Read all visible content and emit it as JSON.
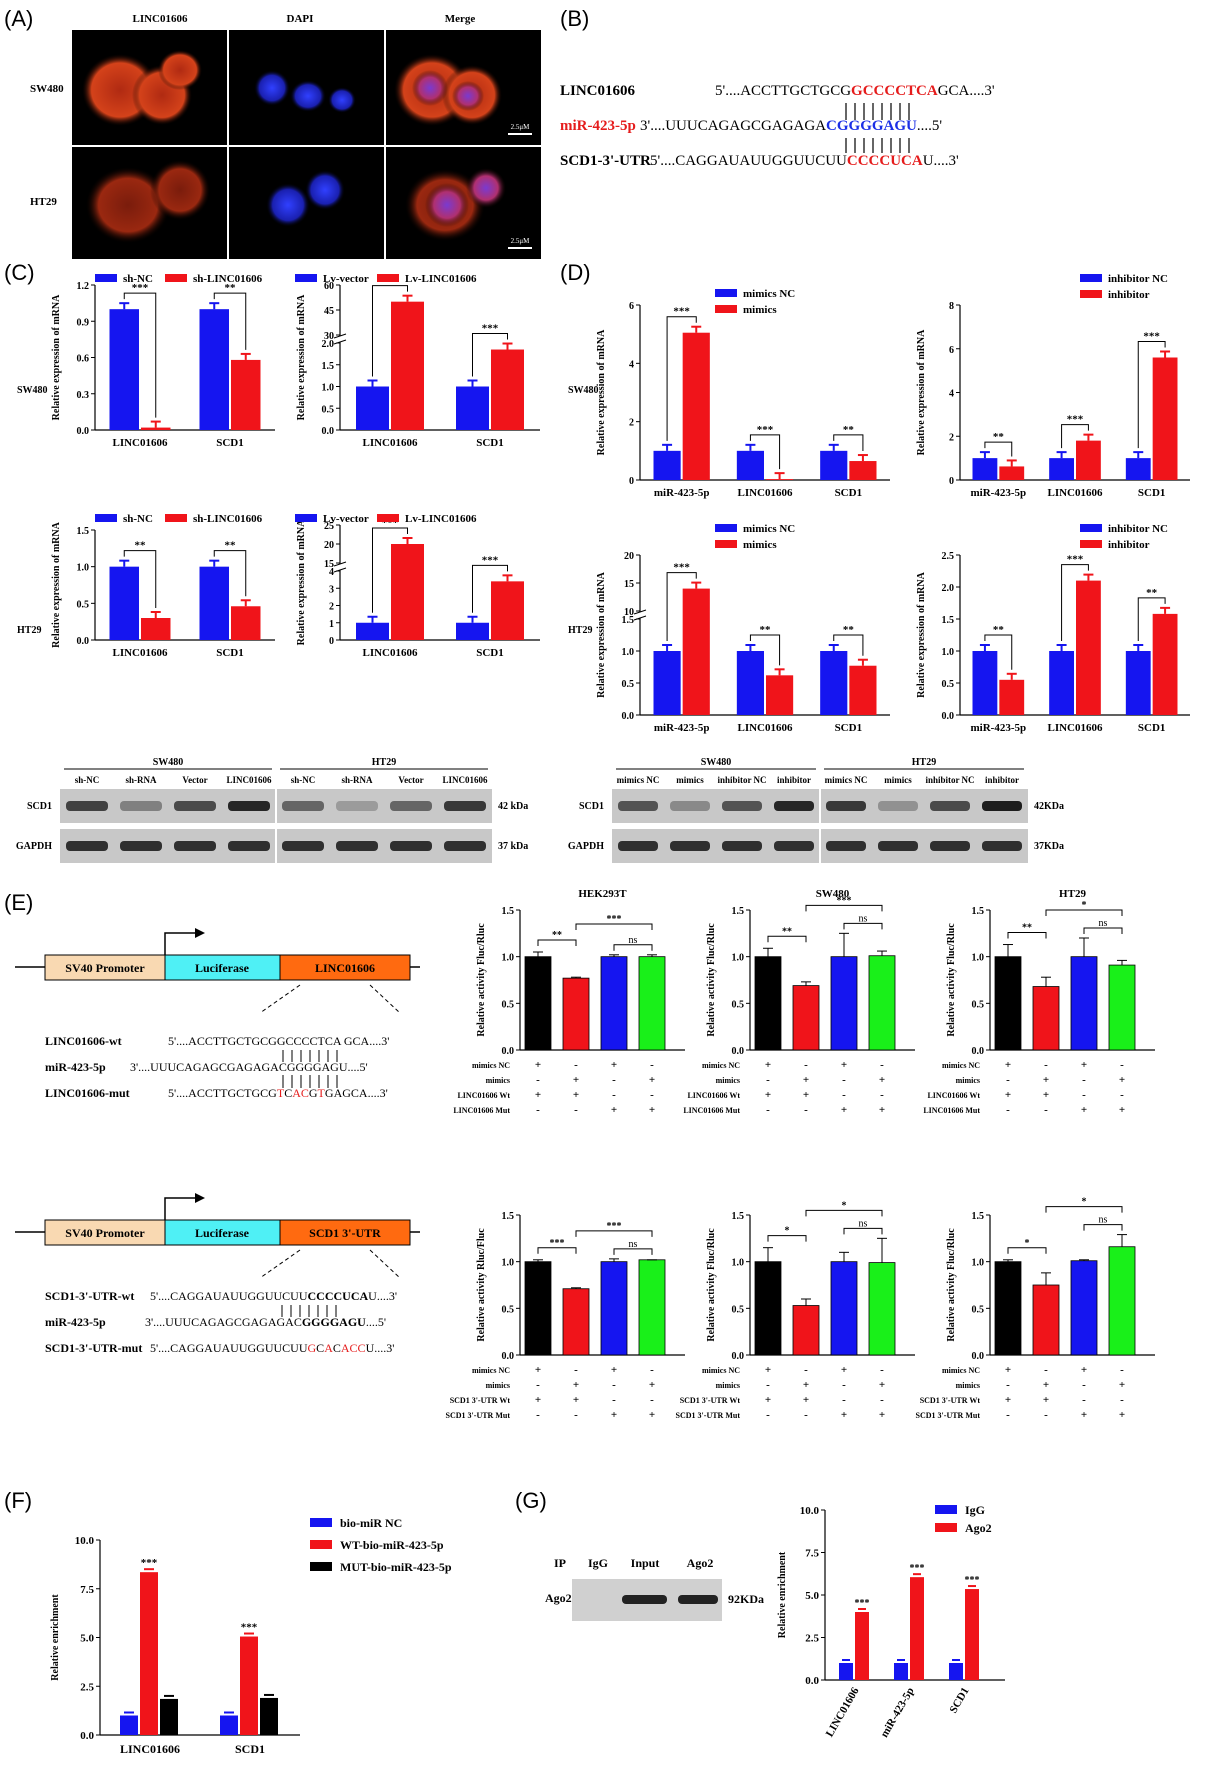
{
  "panels": {
    "a": "(A)",
    "b": "(B)",
    "c": "(C)",
    "d": "(D)",
    "e": "(E)",
    "f": "(F)",
    "g": "(G)"
  },
  "panel_a": {
    "cols": [
      "LINC01606",
      "DAPI",
      "Merge"
    ],
    "rows": [
      "SW480",
      "HT29"
    ],
    "scale": "2.5μM"
  },
  "panel_b": {
    "rows": [
      {
        "label": "LINC01606",
        "color": "#000000",
        "seq": [
          {
            "t": "5'....ACCTTGCTGCG",
            "c": "#000"
          },
          {
            "t": "GCCCCTCA",
            "c": "#e51c1c"
          },
          {
            "t": "GCA....3'",
            "c": "#000"
          }
        ]
      },
      {
        "label": "miR-423-5p",
        "color": "#e51c1c",
        "seq": [
          {
            "t": "3'....UUUCAGAGCGAGAGA",
            "c": "#000"
          },
          {
            "t": "CGGGGAGU",
            "c": "#1a2ee6"
          },
          {
            "t": "....5'",
            "c": "#000"
          }
        ]
      },
      {
        "label": "SCD1-3'-UTR",
        "color": "#000000",
        "seq": [
          {
            "t": "5'....CAGGAUAUUGGUUCUU",
            "c": "#000"
          },
          {
            "t": "CCCCUCA",
            "c": "#e51c1c"
          },
          {
            "t": "U....3'",
            "c": "#000"
          }
        ]
      }
    ]
  },
  "chart_data": [
    {
      "id": "C1",
      "type": "bar",
      "ylabel": "Relative expression of mRNA",
      "categories": [
        "LINC01606",
        "SCD1"
      ],
      "series": [
        {
          "name": "sh-NC",
          "values": [
            1.0,
            1.0
          ]
        },
        {
          "name": "sh-LINC01606",
          "values": [
            0.02,
            0.58
          ]
        }
      ],
      "ylim": [
        0,
        1.2
      ],
      "yticks": [
        "0.0",
        "0.3",
        "0.6",
        "0.9",
        "1.2"
      ],
      "sig": [
        "***",
        "**"
      ]
    },
    {
      "id": "C2",
      "type": "bar",
      "ylabel": "Relative expression of mRNA",
      "categories": [
        "LINC01606",
        "SCD1"
      ],
      "series": [
        {
          "name": "Lv-vector",
          "values": [
            1.0,
            1.0
          ]
        },
        {
          "name": "Lv-LINC01606",
          "values": [
            50,
            1.85
          ]
        }
      ],
      "yticks": [
        "0.0",
        "0.5",
        "1.0",
        "1.5",
        "2.0",
        "30",
        "45",
        "60"
      ],
      "sig": [
        "***",
        "***"
      ]
    },
    {
      "id": "C3",
      "type": "bar",
      "ylabel": "Relative expression of mRNA",
      "categories": [
        "LINC01606",
        "SCD1"
      ],
      "series": [
        {
          "name": "sh-NC",
          "values": [
            1.0,
            1.0
          ]
        },
        {
          "name": "sh-LINC01606",
          "values": [
            0.3,
            0.46
          ]
        }
      ],
      "ylim": [
        0,
        1.5
      ],
      "yticks": [
        "0.0",
        "0.5",
        "1.0",
        "1.5"
      ],
      "sig": [
        "**",
        "**"
      ]
    },
    {
      "id": "C4",
      "type": "bar",
      "ylabel": "Relative expression of mRNA",
      "categories": [
        "LINC01606",
        "SCD1"
      ],
      "series": [
        {
          "name": "Lv-vector",
          "values": [
            1.0,
            1.0
          ]
        },
        {
          "name": "Lv-LINC01606",
          "values": [
            20,
            3.4
          ]
        }
      ],
      "yticks": [
        "0",
        "1",
        "2",
        "3",
        "4",
        "15",
        "20",
        "25"
      ],
      "sig": [
        "***",
        "***"
      ]
    },
    {
      "id": "D1",
      "type": "bar",
      "ylabel": "Relative expression of mRNA",
      "categories": [
        "miR-423-5p",
        "LINC01606",
        "SCD1"
      ],
      "series": [
        {
          "name": "mimics NC",
          "values": [
            1.0,
            1.0,
            1.0
          ]
        },
        {
          "name": "mimics",
          "values": [
            5.05,
            0.03,
            0.65
          ]
        }
      ],
      "ylim": [
        0,
        6
      ],
      "yticks": [
        "0",
        "2",
        "4",
        "6"
      ],
      "sig": [
        "***",
        "***",
        "**"
      ]
    },
    {
      "id": "D2",
      "type": "bar",
      "ylabel": "Relative expression of mRNA",
      "categories": [
        "miR-423-5p",
        "LINC01606",
        "SCD1"
      ],
      "series": [
        {
          "name": "inhibitor NC",
          "values": [
            1.0,
            1.0,
            1.0
          ]
        },
        {
          "name": "inhibitor",
          "values": [
            0.62,
            1.8,
            5.6
          ]
        }
      ],
      "ylim": [
        0,
        8
      ],
      "yticks": [
        "0",
        "2",
        "4",
        "6",
        "8"
      ],
      "sig": [
        "**",
        "***",
        "***"
      ]
    },
    {
      "id": "D3",
      "type": "bar",
      "ylabel": "Relative expression of mRNA",
      "categories": [
        "miR-423-5p",
        "LINC01606",
        "SCD1"
      ],
      "series": [
        {
          "name": "mimics NC",
          "values": [
            1.0,
            1.0,
            1.0
          ]
        },
        {
          "name": "mimics",
          "values": [
            14,
            0.62,
            0.77
          ]
        }
      ],
      "yticks": [
        "0.0",
        "0.5",
        "1.0",
        "1.5",
        "10",
        "15",
        "20"
      ],
      "sig": [
        "***",
        "**",
        "**"
      ]
    },
    {
      "id": "D4",
      "type": "bar",
      "ylabel": "Relative expression of mRNA",
      "categories": [
        "miR-423-5p",
        "LINC01606",
        "SCD1"
      ],
      "series": [
        {
          "name": "inhibitor NC",
          "values": [
            1.0,
            1.0,
            1.0
          ]
        },
        {
          "name": "inhibitor",
          "values": [
            0.55,
            2.1,
            1.58
          ]
        }
      ],
      "ylim": [
        0,
        2.5
      ],
      "yticks": [
        "0.0",
        "0.5",
        "1.0",
        "1.5",
        "2.0",
        "2.5"
      ],
      "sig": [
        "**",
        "***",
        "**"
      ]
    },
    {
      "id": "E1",
      "type": "bar",
      "title": "HEK293T",
      "ylabel": "Relative activity Fluc/Rluc",
      "values": [
        1.0,
        0.77,
        1.0,
        1.0
      ],
      "err": [
        0.05,
        0.01,
        0.02,
        0.02
      ],
      "ylim": [
        0,
        1.5
      ],
      "yticks": [
        "0.0",
        "0.5",
        "1.0",
        "1.5"
      ],
      "sig": [
        "**",
        "***",
        "ns"
      ]
    },
    {
      "id": "E2",
      "type": "bar",
      "title": "SW480",
      "ylabel": "Relative activity Fluc/Rluc",
      "values": [
        1.0,
        0.69,
        1.0,
        1.01
      ],
      "err": [
        0.09,
        0.04,
        0.25,
        0.05
      ],
      "ylim": [
        0,
        1.5
      ],
      "yticks": [
        "0.0",
        "0.5",
        "1.0",
        "1.5"
      ],
      "sig": [
        "**",
        "***",
        "ns"
      ]
    },
    {
      "id": "E3",
      "type": "bar",
      "title": "HT29",
      "ylabel": "Relative activity Fluc/Rluc",
      "values": [
        1.0,
        0.68,
        1.0,
        0.91
      ],
      "err": [
        0.13,
        0.1,
        0.2,
        0.05
      ],
      "ylim": [
        0,
        1.5
      ],
      "yticks": [
        "0.0",
        "0.5",
        "1.0",
        "1.5"
      ],
      "sig": [
        "**",
        "*",
        "ns"
      ]
    },
    {
      "id": "E4",
      "type": "bar",
      "ylabel": "Relative activity Rluc/Fluc",
      "values": [
        1.0,
        0.71,
        1.0,
        1.02
      ],
      "err": [
        0.02,
        0.01,
        0.03,
        0.0
      ],
      "ylim": [
        0,
        1.5
      ],
      "yticks": [
        "0.0",
        "0.5",
        "1.0",
        "1.5"
      ],
      "sig": [
        "***",
        "***",
        "ns"
      ]
    },
    {
      "id": "E5",
      "type": "bar",
      "ylabel": "Relative activity Fluc/Rluc",
      "values": [
        1.0,
        0.53,
        1.0,
        0.99
      ],
      "err": [
        0.15,
        0.07,
        0.1,
        0.26
      ],
      "ylim": [
        0,
        1.5
      ],
      "yticks": [
        "0.0",
        "0.5",
        "1.0",
        "1.5"
      ],
      "sig": [
        "*",
        "*",
        "ns"
      ]
    },
    {
      "id": "E6",
      "type": "bar",
      "ylabel": "Relative activity Fluc/Rluc",
      "values": [
        1.0,
        0.75,
        1.01,
        1.16
      ],
      "err": [
        0.02,
        0.13,
        0.01,
        0.13
      ],
      "ylim": [
        0,
        1.5
      ],
      "yticks": [
        "0.0",
        "0.5",
        "1.0",
        "1.5"
      ],
      "sig": [
        "*",
        "*",
        "ns"
      ]
    },
    {
      "id": "F",
      "type": "bar",
      "ylabel": "Relative enrichment",
      "categories": [
        "LINC01606",
        "SCD1"
      ],
      "series": [
        {
          "name": "bio-miR NC",
          "values": [
            1.0,
            1.0
          ]
        },
        {
          "name": "WT-bio-miR-423-5p",
          "values": [
            8.35,
            5.05
          ]
        },
        {
          "name": "MUT-bio-miR-423-5p",
          "values": [
            1.85,
            1.9
          ]
        }
      ],
      "ylim": [
        0,
        10
      ],
      "yticks": [
        "0.0",
        "2.5",
        "5.0",
        "7.5",
        "10.0"
      ],
      "sig": [
        "***",
        "***"
      ]
    },
    {
      "id": "G",
      "type": "bar",
      "ylabel": "Relative enrichment",
      "categories": [
        "LINC01606",
        "miR-423-5p",
        "SCD1"
      ],
      "series": [
        {
          "name": "IgG",
          "values": [
            1.0,
            1.0,
            1.0
          ]
        },
        {
          "name": "Ago2",
          "values": [
            4.0,
            6.05,
            5.35
          ]
        }
      ],
      "ylim": [
        0,
        10
      ],
      "yticks": [
        "0.0",
        "2.5",
        "5.0",
        "7.5",
        "10.0"
      ],
      "sig": [
        "***",
        "***",
        "***"
      ]
    }
  ],
  "panel_c_labels": {
    "sw480": "SW480",
    "ht29": "HT29"
  },
  "panel_d_labels": {
    "sw480": "SW480",
    "ht29": "HT29"
  },
  "blot_c": {
    "groups": [
      "SW480",
      "HT29"
    ],
    "lanes": [
      "sh-NC",
      "sh-RNA",
      "Vector",
      "LINC01606",
      "sh-NC",
      "sh-RNA",
      "Vector",
      "LINC01606"
    ],
    "rows": [
      "SCD1",
      "GAPDH"
    ],
    "kda": [
      "42 kDa",
      "37 kDa"
    ]
  },
  "blot_d": {
    "groups": [
      "SW480",
      "HT29"
    ],
    "lanes": [
      "mimics NC",
      "mimics",
      "inhibitor NC",
      "inhibitor",
      "mimics NC",
      "mimics",
      "inhibitor NC",
      "inhibitor"
    ],
    "rows": [
      "SCD1",
      "GAPDH"
    ],
    "kda": [
      "42KDa",
      "37KDa"
    ]
  },
  "panel_e": {
    "construct1": {
      "promoter": "SV40 Promoter",
      "luc": "Luciferase",
      "insert": "LINC01606"
    },
    "construct2": {
      "promoter": "SV40 Promoter",
      "luc": "Luciferase",
      "insert": "SCD1 3'-UTR"
    },
    "seq1": [
      {
        "label": "LINC01606-wt",
        "parts": [
          {
            "t": "5'....ACCTTGCTGCGGCCCCTCA GCA....3'",
            "c": "#000"
          }
        ]
      },
      {
        "label": "miR-423-5p",
        "parts": [
          {
            "t": "3'....UUUCAGAGCGAGAGACGGGGAGU....5'",
            "c": "#000"
          }
        ]
      },
      {
        "label": "LINC01606-mut",
        "parts": [
          {
            "t": "5'....ACCTTGCTGCG",
            "c": "#000"
          },
          {
            "t": "T",
            "c": "#e51c1c"
          },
          {
            "t": "C",
            "c": "#000"
          },
          {
            "t": "AC",
            "c": "#e51c1c"
          },
          {
            "t": "G",
            "c": "#000"
          },
          {
            "t": "T",
            "c": "#e51c1c"
          },
          {
            "t": "G",
            "c": "#000"
          },
          {
            "t": "AGCA....3'",
            "c": "#000"
          }
        ]
      }
    ],
    "seq2": [
      {
        "label": "SCD1-3'-UTR-wt",
        "parts": [
          {
            "t": "5'....CAGGAUAUUGGUUCUU",
            "c": "#000"
          },
          {
            "t": "CCCCUCA",
            "c": "#000",
            "b": true
          },
          {
            "t": "U....3'",
            "c": "#000"
          }
        ]
      },
      {
        "label": "miR-423-5p",
        "parts": [
          {
            "t": "3'....UUUCAGAGCGAGAGAC",
            "c": "#000"
          },
          {
            "t": "GGGGAGU",
            "c": "#000",
            "b": true
          },
          {
            "t": "....5'",
            "c": "#000"
          }
        ]
      },
      {
        "label": "SCD1-3'-UTR-mut",
        "parts": [
          {
            "t": "5'....CAGGAUAUUGGUUCUU",
            "c": "#000"
          },
          {
            "t": "G",
            "c": "#e51c1c"
          },
          {
            "t": "C",
            "c": "#000"
          },
          {
            "t": "A",
            "c": "#e51c1c"
          },
          {
            "t": "C",
            "c": "#000"
          },
          {
            "t": "A",
            "c": "#e51c1c"
          },
          {
            "t": "CC",
            "c": "#e51c1c"
          },
          {
            "t": "U....3'",
            "c": "#000"
          }
        ]
      }
    ],
    "table1": {
      "rows": [
        {
          "label": "mimics NC",
          "vals": [
            "+",
            "-",
            "+",
            "-"
          ]
        },
        {
          "label": "mimics",
          "vals": [
            "-",
            "+",
            "-",
            "+"
          ]
        },
        {
          "label": "LINC01606 Wt",
          "vals": [
            "+",
            "+",
            "-",
            "-"
          ]
        },
        {
          "label": "LINC01606 Mut",
          "vals": [
            "-",
            "-",
            "+",
            "+"
          ]
        }
      ]
    },
    "table2": {
      "rows": [
        {
          "label": "mimics NC",
          "vals": [
            "+",
            "-",
            "+",
            "-"
          ]
        },
        {
          "label": "mimics",
          "vals": [
            "-",
            "+",
            "-",
            "+"
          ]
        },
        {
          "label": "SCD1 3'-UTR Wt",
          "vals": [
            "+",
            "+",
            "-",
            "-"
          ]
        },
        {
          "label": "SCD1 3'-UTR Mut",
          "vals": [
            "-",
            "-",
            "+",
            "+"
          ]
        }
      ]
    }
  },
  "panel_g": {
    "header": [
      "IP",
      "IgG",
      "Input",
      "Ago2"
    ],
    "row": "Ago2",
    "kda": "92KDa"
  },
  "colors": {
    "blue": "#1515f0",
    "red": "#f0141a",
    "black": "#000000",
    "green": "#19f019"
  }
}
